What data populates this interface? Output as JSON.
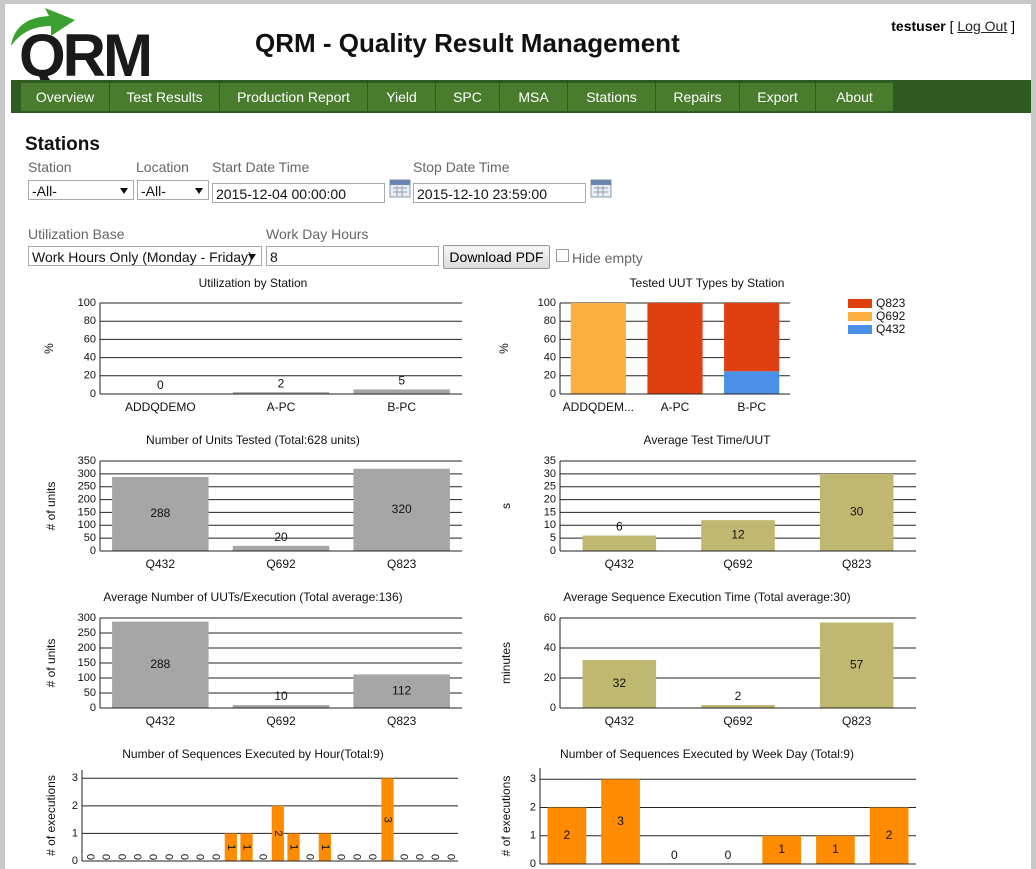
{
  "header": {
    "logo": "QRM",
    "title": "QRM - Quality Result Management",
    "user": "testuser",
    "logout_prefix": "[",
    "logout": "Log Out",
    "logout_suffix": "]"
  },
  "nav": [
    "Overview",
    "Test Results",
    "Production Report",
    "Yield",
    "SPC",
    "MSA",
    "Stations",
    "Repairs",
    "Export",
    "About"
  ],
  "form": {
    "heading": "Stations",
    "station_label": "Station",
    "station_value": "-All-",
    "location_label": "Location",
    "location_value": "-All-",
    "start_label": "Start Date Time",
    "start_value": "2015-12-04 00:00:00",
    "stop_label": "Stop Date Time",
    "stop_value": "2015-12-10 23:59:00",
    "util_label": "Utilization Base",
    "util_value": "Work Hours Only (Monday - Friday)",
    "hours_label": "Work Day Hours",
    "hours_value": "8",
    "download": "Download PDF",
    "hide_empty": "Hide empty"
  },
  "chart_data": [
    {
      "type": "bar",
      "title": "Utilization by Station",
      "y_label": "%",
      "categories": [
        "ADDQDEMO",
        "A-PC",
        "B-PC"
      ],
      "values": [
        0,
        2,
        5
      ],
      "color": "#a6a6a6",
      "ylim": [
        0,
        100
      ],
      "yticks": [
        0,
        20,
        40,
        60,
        80,
        100
      ],
      "grid": true,
      "data_labels": true
    },
    {
      "type": "stacked_bar",
      "title": "Tested UUT Types by Station",
      "y_label": "%",
      "categories": [
        "ADDQDEM...",
        "A-PC",
        "B-PC"
      ],
      "series": [
        {
          "name": "Q823",
          "color": "#e04010",
          "values": [
            0,
            100,
            75
          ]
        },
        {
          "name": "Q692",
          "color": "#f9b03f",
          "values": [
            100,
            0,
            0
          ]
        },
        {
          "name": "Q432",
          "color": "#4a8fe8",
          "values": [
            0,
            0,
            25
          ]
        }
      ],
      "ylim": [
        0,
        100
      ],
      "yticks": [
        0,
        20,
        40,
        60,
        80,
        100
      ],
      "grid": true,
      "legend": "right"
    },
    {
      "type": "bar",
      "title": "Number of Units Tested (Total:628 units)",
      "y_label": "# of units",
      "categories": [
        "Q432",
        "Q692",
        "Q823"
      ],
      "values": [
        288,
        20,
        320
      ],
      "color": "#a6a6a6",
      "ylim": [
        0,
        350
      ],
      "yticks": [
        0,
        50,
        100,
        150,
        200,
        250,
        300,
        350
      ],
      "grid": true,
      "data_labels": true
    },
    {
      "type": "bar",
      "title": "Average Test Time/UUT",
      "y_label": "s",
      "categories": [
        "Q432",
        "Q692",
        "Q823"
      ],
      "values": [
        6,
        12,
        30
      ],
      "color": "#c0b870",
      "ylim": [
        0,
        35
      ],
      "yticks": [
        0,
        5,
        10,
        15,
        20,
        25,
        30,
        35
      ],
      "grid": true,
      "data_labels": true
    },
    {
      "type": "bar",
      "title": "Average Number of UUTs/Execution (Total average:136)",
      "y_label": "# of units",
      "categories": [
        "Q432",
        "Q692",
        "Q823"
      ],
      "values": [
        288,
        10,
        112
      ],
      "color": "#a6a6a6",
      "ylim": [
        0,
        300
      ],
      "yticks": [
        0,
        50,
        100,
        150,
        200,
        250,
        300
      ],
      "grid": true,
      "data_labels": true
    },
    {
      "type": "bar",
      "title": "Average Sequence Execution Time (Total average:30)",
      "y_label": "minutes",
      "categories": [
        "Q432",
        "Q692",
        "Q823"
      ],
      "values": [
        32,
        2,
        57
      ],
      "color": "#c0b870",
      "ylim": [
        0,
        60
      ],
      "yticks": [
        0,
        20,
        40,
        60
      ],
      "grid": true,
      "data_labels": true
    },
    {
      "type": "bar",
      "title": "Number of Sequences Executed by Hour(Total:9)",
      "y_label": "# of executions",
      "values": [
        0,
        0,
        0,
        0,
        0,
        0,
        0,
        0,
        0,
        1,
        1,
        0,
        2,
        1,
        0,
        1,
        0,
        0,
        0,
        3,
        0,
        0,
        0,
        0
      ],
      "color": "#ff8c00",
      "ylim": [
        0,
        3.3
      ],
      "yticks": [
        0,
        1,
        2,
        3
      ],
      "grid": true,
      "data_labels": true
    },
    {
      "type": "bar",
      "title": "Number of Sequences Executed by Week Day (Total:9)",
      "y_label": "# of executions",
      "values": [
        2,
        3,
        0,
        0,
        1,
        1,
        2
      ],
      "color": "#ff8c00",
      "ylim": [
        0,
        3.4
      ],
      "yticks": [
        0,
        1,
        2,
        3
      ],
      "grid": true,
      "data_labels": true
    }
  ]
}
